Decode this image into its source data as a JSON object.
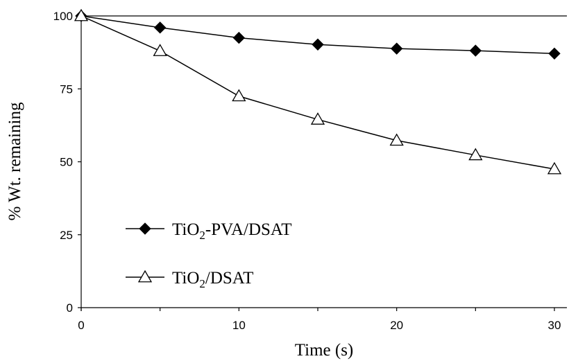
{
  "chart_data": {
    "type": "line",
    "xlabel": "Time (s)",
    "ylabel": "% Wt. remaining",
    "xlim": [
      0,
      30
    ],
    "ylim": [
      0,
      100
    ],
    "xticks": [
      "0",
      "10",
      "20",
      "30"
    ],
    "yticks": [
      "0",
      "25",
      "50",
      "75",
      "100"
    ],
    "grid": false,
    "legend_position": "bottom-left",
    "series": [
      {
        "name": "TiO2-PVA/DSAT",
        "legend_parts": [
          "TiO",
          "2",
          "-PVA/DSAT"
        ],
        "marker": "filled-diamond",
        "color": "#000000",
        "x": [
          0,
          5,
          10,
          15,
          20,
          25,
          30
        ],
        "y": [
          100,
          96,
          92.5,
          90.2,
          88.8,
          88.1,
          87.1
        ]
      },
      {
        "name": "TiO2/DSAT",
        "legend_parts": [
          "TiO",
          "2",
          "/DSAT"
        ],
        "marker": "open-triangle",
        "color": "#000000",
        "x": [
          0,
          5,
          10,
          15,
          20,
          25,
          30
        ],
        "y": [
          100,
          88,
          72.5,
          64.5,
          57.3,
          52.3,
          47.5
        ]
      }
    ]
  }
}
